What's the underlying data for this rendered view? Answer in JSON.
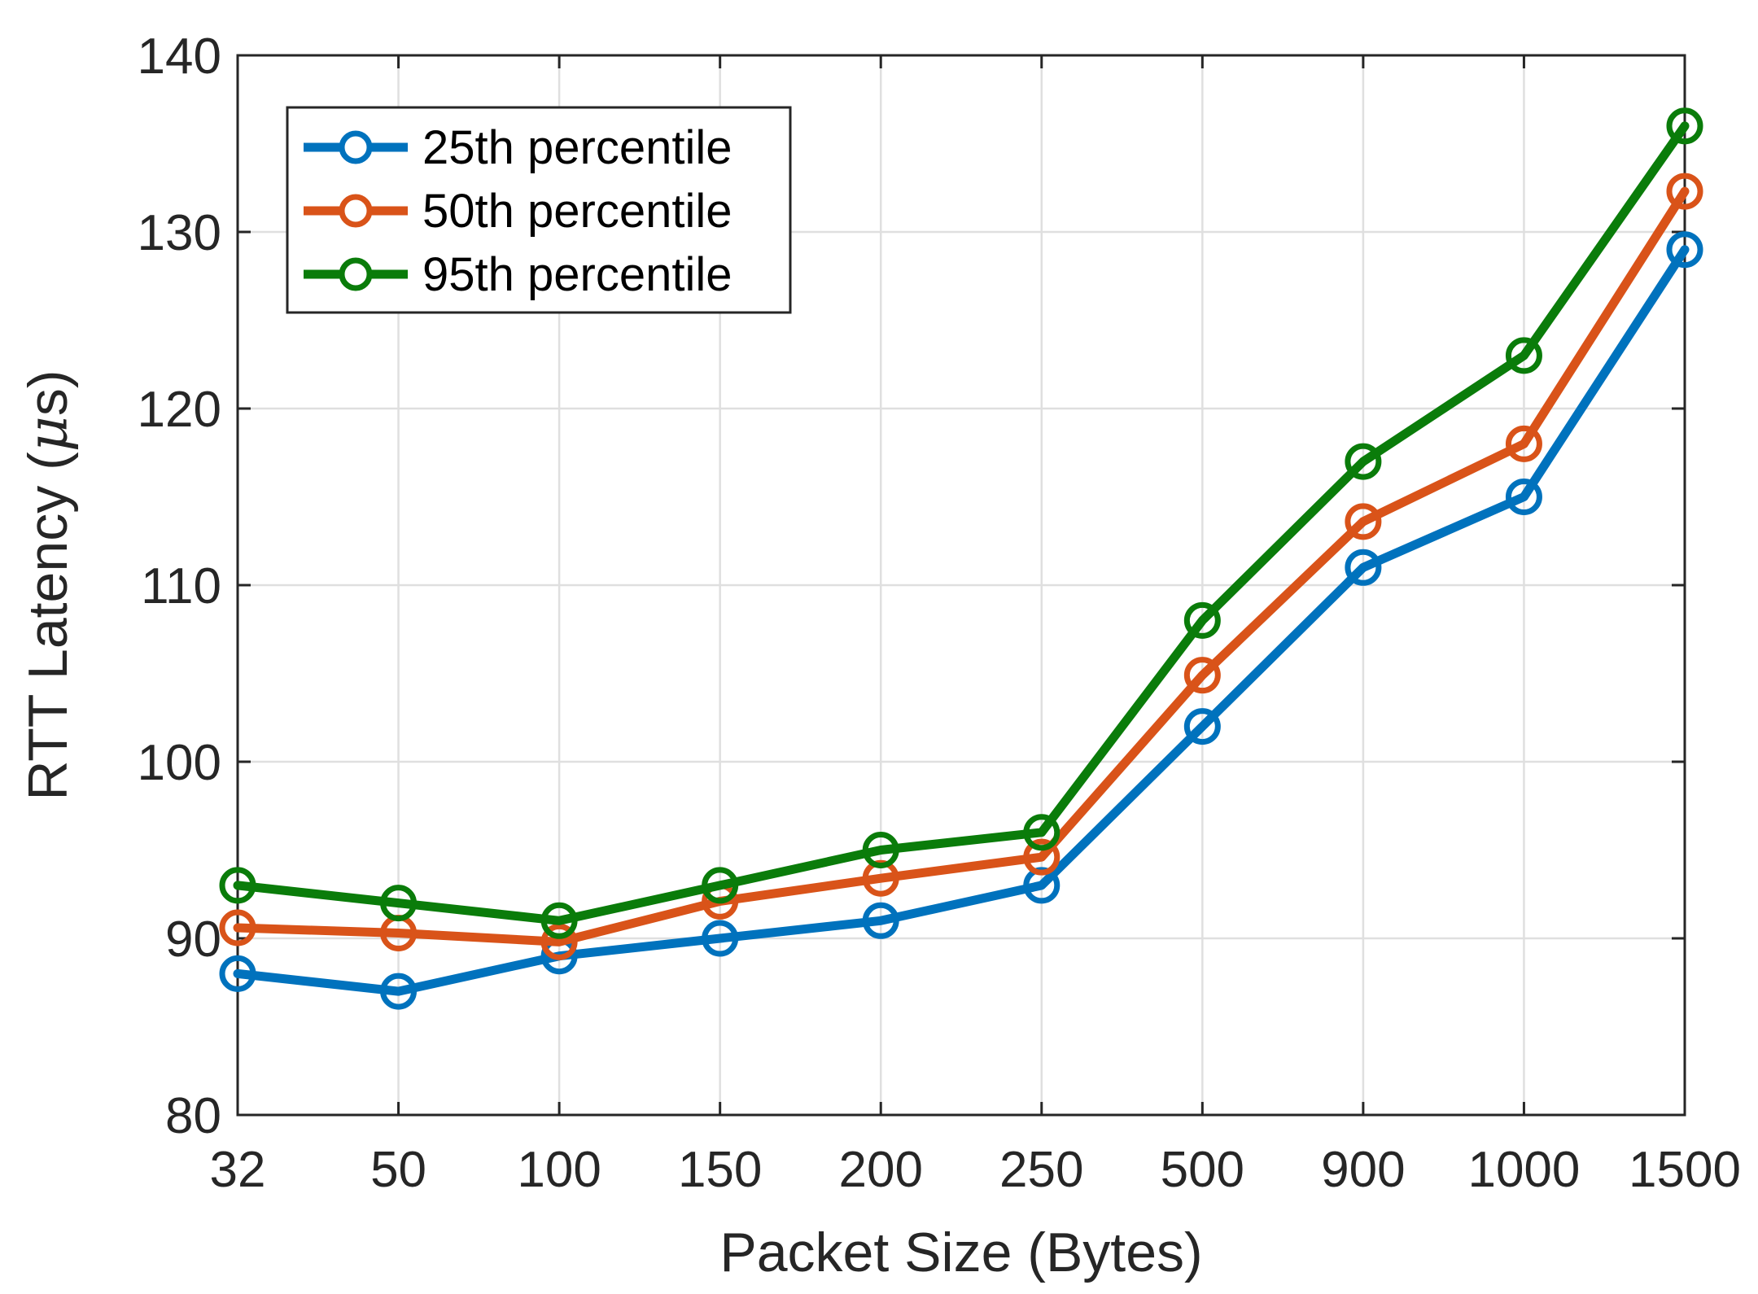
{
  "chart_data": {
    "type": "line",
    "title": "",
    "categories": [
      "32",
      "50",
      "100",
      "150",
      "200",
      "250",
      "500",
      "900",
      "1000",
      "1500"
    ],
    "xlabel": "Packet Size (Bytes)",
    "ylabel_prefix": "RTT Latency (",
    "ylabel_mu": "μ",
    "ylabel_suffix": "s)",
    "ylim": [
      80,
      140
    ],
    "yticks": [
      "80",
      "90",
      "100",
      "110",
      "120",
      "130",
      "140"
    ],
    "grid": true,
    "legend_position": "top-left",
    "series": [
      {
        "name": "25th percentile",
        "color": "#0072BD",
        "values": [
          88,
          87,
          89,
          90,
          91,
          93,
          102,
          111,
          115,
          129
        ]
      },
      {
        "name": "50th percentile",
        "color": "#D95319",
        "values": [
          90.6,
          90.3,
          89.8,
          92.1,
          93.4,
          94.6,
          104.9,
          113.6,
          118,
          132.3
        ]
      },
      {
        "name": "95th percentile",
        "color": "#0A7C0A",
        "values": [
          93,
          92,
          91,
          93,
          95,
          96,
          108,
          117,
          123,
          136
        ]
      }
    ]
  }
}
